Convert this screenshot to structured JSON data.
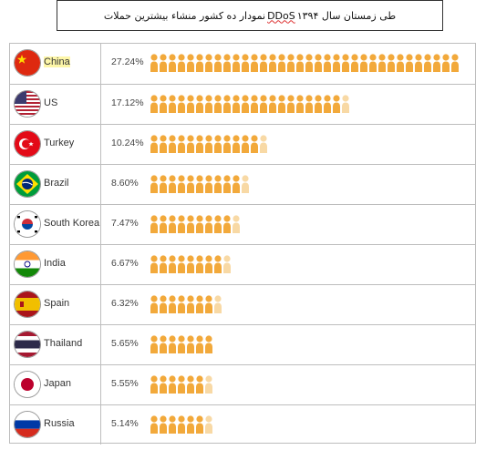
{
  "caption": {
    "prefix": "نمودار ده کشور منشاء بیشترین حملات",
    "keyword": "DDoS",
    "suffix": "طی زمستان سال ۱۳۹۴"
  },
  "colors": {
    "accent": "#f2a93b",
    "fade": "#f8d9a5",
    "border": "#bdbdbd"
  },
  "chart_data": {
    "type": "table",
    "title": "نمودار ده کشور منشاء بیشترین حملات DDoS طی زمستان سال ۱۳۹۴",
    "unit": "%",
    "rows": [
      {
        "country": "China",
        "flag": "china-flag-icon",
        "percent": 27.24,
        "label": "27.24%",
        "highlight": true
      },
      {
        "country": "US",
        "flag": "us-flag-icon",
        "percent": 17.12,
        "label": "17.12%",
        "highlight": false
      },
      {
        "country": "Turkey",
        "flag": "turkey-flag-icon",
        "percent": 10.24,
        "label": "10.24%",
        "highlight": false
      },
      {
        "country": "Brazil",
        "flag": "brazil-flag-icon",
        "percent": 8.6,
        "label": "8.60%",
        "highlight": false
      },
      {
        "country": "South Korea",
        "flag": "south-korea-flag-icon",
        "percent": 7.47,
        "label": "7.47%",
        "highlight": false
      },
      {
        "country": "India",
        "flag": "india-flag-icon",
        "percent": 6.67,
        "label": "6.67%",
        "highlight": false
      },
      {
        "country": "Spain",
        "flag": "spain-flag-icon",
        "percent": 6.32,
        "label": "6.32%",
        "highlight": false
      },
      {
        "country": "Thailand",
        "flag": "thailand-flag-icon",
        "percent": 5.65,
        "label": "5.65%",
        "highlight": false
      },
      {
        "country": "Japan",
        "flag": "japan-flag-icon",
        "percent": 5.55,
        "label": "5.55%",
        "highlight": false
      },
      {
        "country": "Russia",
        "flag": "russia-flag-icon",
        "percent": 5.14,
        "label": "5.14%",
        "highlight": false
      }
    ]
  }
}
